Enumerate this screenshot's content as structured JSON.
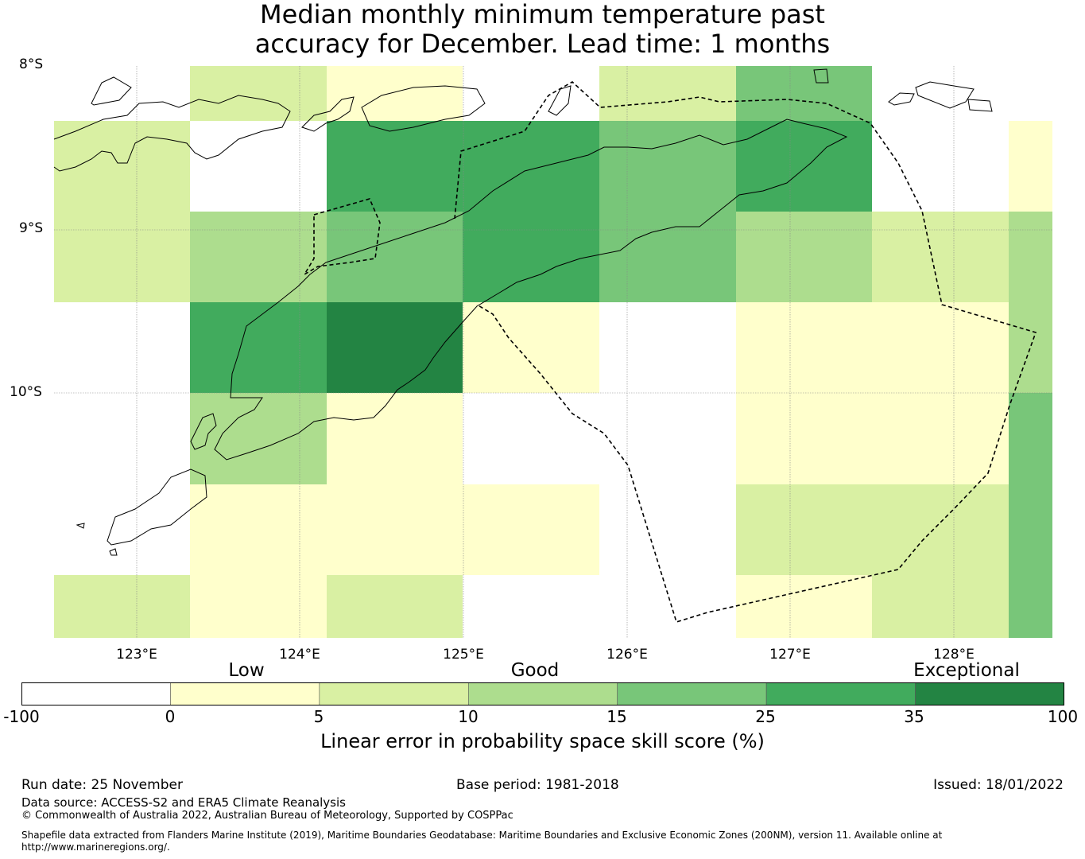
{
  "title": {
    "line1": "Median monthly minimum temperature past",
    "line2": "accuracy for December. Lead time: 1 months"
  },
  "map": {
    "lat_labels": [
      "8°S",
      "9°S",
      "10°S"
    ],
    "lon_labels": [
      "123°E",
      "124°E",
      "125°E",
      "126°E",
      "127°E",
      "128°E"
    ],
    "skill_grid_bins": [
      [
        null,
        2,
        1,
        null,
        2,
        4,
        null,
        null
      ],
      [
        2,
        0,
        5,
        5,
        4,
        5,
        null,
        1
      ],
      [
        2,
        3,
        4,
        5,
        4,
        3,
        2,
        3
      ],
      [
        null,
        5,
        6,
        1,
        null,
        1,
        1,
        3
      ],
      [
        null,
        3,
        1,
        0,
        null,
        1,
        1,
        4
      ],
      [
        null,
        1,
        1,
        1,
        null,
        2,
        2,
        4
      ],
      [
        2,
        1,
        2,
        0,
        null,
        1,
        2,
        4
      ]
    ]
  },
  "colorbar": {
    "category_labels": [
      "Low",
      "Good",
      "Exceptional"
    ],
    "tick_labels": [
      "-100",
      "0",
      "5",
      "10",
      "15",
      "25",
      "35",
      "100"
    ],
    "colors": [
      "#ffffff",
      "#ffffcc",
      "#d9f0a3",
      "#addd8e",
      "#78c679",
      "#41ab5d",
      "#238443"
    ],
    "label": "Linear error in probability space skill score (%)"
  },
  "footer": {
    "run_date": "Run date: 25 November",
    "base_period": "Base period: 1981-2018",
    "issued": "Issued: 18/01/2022",
    "data_source": "Data source: ACCESS-S2 and ERA5 Climate Reanalysis",
    "copyright": "© Commonwealth of Australia 2022, Australian Bureau of Meteorology, Supported by COSPPac",
    "shapefile": "Shapefile data extracted from Flanders Marine Institute (2019), Maritime Boundaries Geodatabase: Maritime Boundaries and Exclusive Economic Zones (200NM), version 11. Available online at http://www.marineregions.org/."
  }
}
